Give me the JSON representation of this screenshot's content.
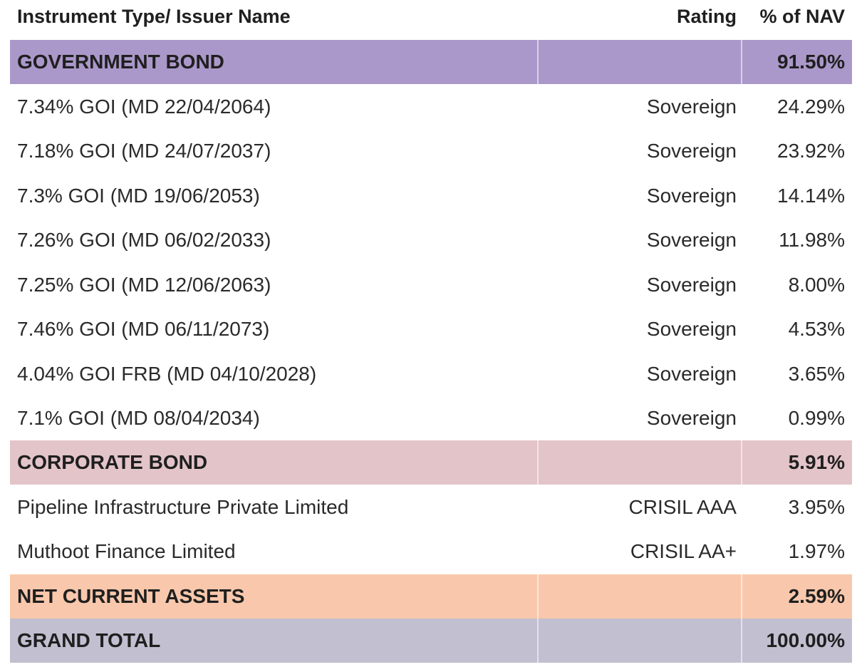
{
  "header": {
    "name": "Instrument Type/ Issuer Name",
    "rating": "Rating",
    "nav": "% of NAV"
  },
  "colors": {
    "government": "#ab98ca",
    "corporate": "#e3c4c9",
    "net_current": "#f9c8ac",
    "grand_total": "#c1bfd0"
  },
  "rows": [
    {
      "type": "section",
      "name": "GOVERNMENT BOND",
      "rating": "",
      "nav": "91.50%"
    },
    {
      "type": "item",
      "name": "7.34% GOI (MD 22/04/2064)",
      "rating": "Sovereign",
      "nav": "24.29%"
    },
    {
      "type": "item",
      "name": "7.18% GOI (MD 24/07/2037)",
      "rating": "Sovereign",
      "nav": "23.92%"
    },
    {
      "type": "item",
      "name": "7.3% GOI (MD 19/06/2053)",
      "rating": "Sovereign",
      "nav": "14.14%"
    },
    {
      "type": "item",
      "name": "7.26% GOI (MD 06/02/2033)",
      "rating": "Sovereign",
      "nav": "11.98%"
    },
    {
      "type": "item",
      "name": "7.25% GOI (MD 12/06/2063)",
      "rating": "Sovereign",
      "nav": "8.00%"
    },
    {
      "type": "item",
      "name": "7.46% GOI (MD 06/11/2073)",
      "rating": "Sovereign",
      "nav": "4.53%"
    },
    {
      "type": "item",
      "name": "4.04% GOI FRB (MD 04/10/2028)",
      "rating": "Sovereign",
      "nav": "3.65%"
    },
    {
      "type": "item",
      "name": "7.1% GOI (MD 08/04/2034)",
      "rating": "Sovereign",
      "nav": "0.99%"
    },
    {
      "type": "section",
      "name": "CORPORATE BOND",
      "rating": "",
      "nav": "5.91%"
    },
    {
      "type": "item",
      "name": "Pipeline Infrastructure Private Limited",
      "rating": "CRISIL AAA",
      "nav": "3.95%"
    },
    {
      "type": "item",
      "name": "Muthoot Finance Limited",
      "rating": "CRISIL AA+",
      "nav": "1.97%"
    },
    {
      "type": "section",
      "name": "NET CURRENT ASSETS",
      "rating": "",
      "nav": "2.59%"
    },
    {
      "type": "section",
      "name": "GRAND TOTAL",
      "rating": "",
      "nav": "100.00%"
    }
  ]
}
